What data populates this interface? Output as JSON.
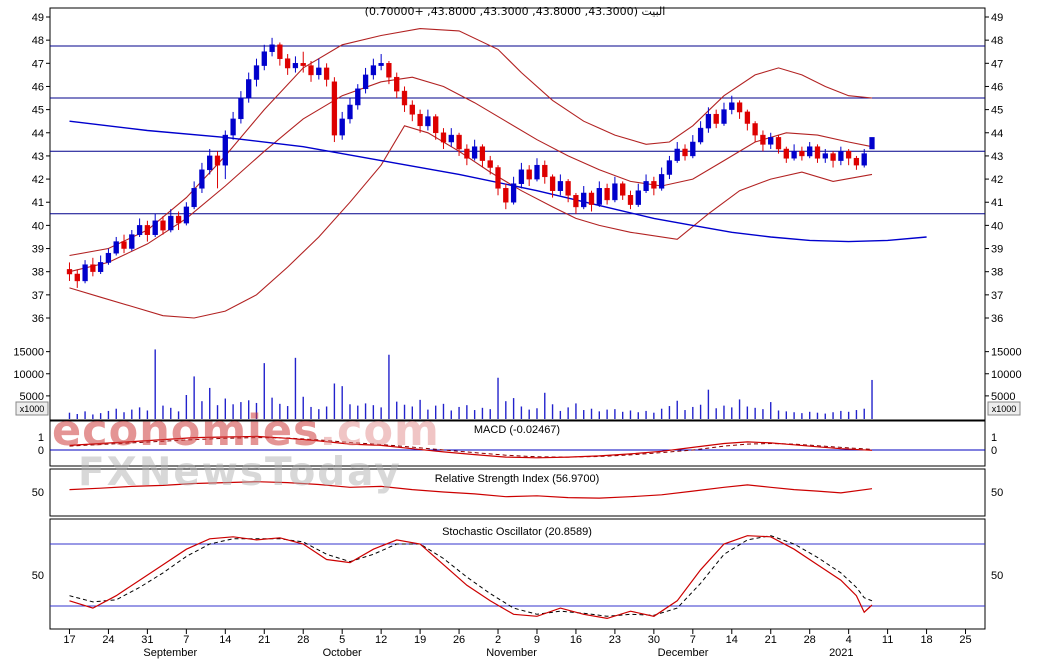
{
  "header": {
    "title": "البيت (43.3000, 43.8000, 43.3000, 43.8000, +0.70000)"
  },
  "watermarks": {
    "primary": "economies",
    "primary_suffix": ".com",
    "secondary": "FXNewsToday"
  },
  "colors": {
    "up_candle": "#0000cc",
    "down_candle": "#dd0000",
    "band_line": "#b22222",
    "ma_line": "#0000cd",
    "hline": "#00008b",
    "volume_bar": "#2222cc",
    "frame": "#000000",
    "signal_dashed": "#880000",
    "stoch_d_dashed": "#000000"
  },
  "chart_data": {
    "type": "candlestick",
    "title": "البيت (43.3000, 43.8000, 43.3000, 43.8000, +0.70000)",
    "quote": {
      "open": 43.3,
      "high": 43.8,
      "low": 43.3,
      "close": 43.8,
      "change": 0.7
    },
    "price_axis": {
      "ticks": [
        49,
        48,
        47,
        46,
        45,
        44,
        43,
        42,
        41,
        40,
        39,
        38,
        37,
        36
      ]
    },
    "price_hlines": [
      47.75,
      45.5,
      43.2,
      40.5
    ],
    "candles": [
      [
        38.1,
        38.4,
        37.6,
        37.9,
        1200
      ],
      [
        37.9,
        38.1,
        37.3,
        37.6,
        900
      ],
      [
        37.6,
        38.5,
        37.5,
        38.3,
        1500
      ],
      [
        38.3,
        38.6,
        37.8,
        38.0,
        800
      ],
      [
        38.0,
        38.7,
        37.9,
        38.4,
        1100
      ],
      [
        38.4,
        39.0,
        38.3,
        38.8,
        1600
      ],
      [
        38.8,
        39.5,
        38.7,
        39.3,
        2100
      ],
      [
        39.3,
        39.6,
        38.8,
        39.0,
        1300
      ],
      [
        39.0,
        39.8,
        38.9,
        39.6,
        1900
      ],
      [
        39.6,
        40.3,
        39.5,
        40.0,
        2400
      ],
      [
        40.0,
        40.2,
        39.3,
        39.6,
        1700
      ],
      [
        39.6,
        40.5,
        39.5,
        40.2,
        15500
      ],
      [
        40.2,
        40.4,
        39.6,
        39.8,
        2800
      ],
      [
        39.8,
        40.7,
        39.7,
        40.4,
        2300
      ],
      [
        40.4,
        40.6,
        39.8,
        40.1,
        1500
      ],
      [
        40.1,
        41.0,
        40.0,
        40.8,
        5200
      ],
      [
        40.8,
        41.9,
        40.7,
        41.6,
        9400
      ],
      [
        41.6,
        42.7,
        41.4,
        42.4,
        3800
      ],
      [
        42.4,
        43.3,
        42.2,
        43.0,
        6800
      ],
      [
        43.0,
        43.2,
        41.6,
        42.6,
        2900
      ],
      [
        42.6,
        44.1,
        42.0,
        43.9,
        4400
      ],
      [
        43.9,
        44.9,
        43.7,
        44.6,
        3100
      ],
      [
        44.6,
        45.8,
        44.4,
        45.5,
        3600
      ],
      [
        45.5,
        46.6,
        45.3,
        46.3,
        4000
      ],
      [
        46.3,
        47.2,
        46.0,
        46.9,
        3400
      ],
      [
        46.9,
        47.8,
        46.7,
        47.5,
        12400
      ],
      [
        47.5,
        48.1,
        47.3,
        47.8,
        4600
      ],
      [
        47.8,
        47.9,
        46.9,
        47.2,
        3200
      ],
      [
        47.2,
        47.4,
        46.5,
        46.8,
        2700
      ],
      [
        46.8,
        47.3,
        46.6,
        47.0,
        13600
      ],
      [
        47.0,
        47.5,
        46.6,
        46.9,
        4800
      ],
      [
        46.9,
        47.1,
        46.2,
        46.5,
        2500
      ],
      [
        46.5,
        47.2,
        46.3,
        46.8,
        2000
      ],
      [
        46.8,
        47.0,
        46.0,
        46.3,
        2600
      ],
      [
        46.2,
        46.4,
        43.6,
        43.9,
        7800
      ],
      [
        43.9,
        44.9,
        43.7,
        44.6,
        7200
      ],
      [
        44.6,
        45.5,
        44.4,
        45.2,
        3100
      ],
      [
        45.2,
        46.1,
        45.0,
        45.9,
        2800
      ],
      [
        45.9,
        46.8,
        45.7,
        46.5,
        3300
      ],
      [
        46.5,
        47.2,
        46.3,
        46.9,
        2900
      ],
      [
        46.9,
        47.4,
        46.7,
        47.0,
        2400
      ],
      [
        47.0,
        47.1,
        46.1,
        46.4,
        14300
      ],
      [
        46.4,
        46.6,
        45.5,
        45.8,
        3700
      ],
      [
        45.8,
        46.0,
        44.9,
        45.2,
        3000
      ],
      [
        45.2,
        45.4,
        44.5,
        44.8,
        2600
      ],
      [
        44.8,
        45.0,
        44.0,
        44.3,
        4100
      ],
      [
        44.3,
        45.0,
        44.1,
        44.7,
        1900
      ],
      [
        44.7,
        44.8,
        43.7,
        44.0,
        2800
      ],
      [
        44.0,
        44.2,
        43.3,
        43.6,
        3200
      ],
      [
        43.6,
        44.2,
        43.4,
        43.9,
        1700
      ],
      [
        43.9,
        44.0,
        43.0,
        43.3,
        2500
      ],
      [
        43.3,
        43.5,
        42.6,
        42.9,
        2900
      ],
      [
        42.9,
        43.7,
        42.8,
        43.4,
        1800
      ],
      [
        43.4,
        43.5,
        42.5,
        42.8,
        2300
      ],
      [
        42.8,
        43.0,
        42.2,
        42.5,
        2000
      ],
      [
        42.5,
        42.6,
        41.3,
        41.6,
        9100
      ],
      [
        41.6,
        41.8,
        40.7,
        41.0,
        3800
      ],
      [
        41.0,
        42.1,
        40.9,
        41.8,
        4500
      ],
      [
        41.8,
        42.7,
        41.6,
        42.4,
        2600
      ],
      [
        42.4,
        42.6,
        41.7,
        42.0,
        1900
      ],
      [
        42.0,
        42.9,
        41.9,
        42.6,
        2200
      ],
      [
        42.6,
        42.8,
        41.8,
        42.1,
        5700
      ],
      [
        42.1,
        42.2,
        41.2,
        41.5,
        3100
      ],
      [
        41.5,
        42.2,
        41.3,
        41.9,
        1600
      ],
      [
        41.9,
        42.0,
        41.0,
        41.3,
        2400
      ],
      [
        41.3,
        41.4,
        40.5,
        40.8,
        3300
      ],
      [
        40.8,
        41.7,
        40.7,
        41.4,
        1800
      ],
      [
        41.4,
        41.5,
        40.6,
        40.9,
        2100
      ],
      [
        40.9,
        41.9,
        40.8,
        41.6,
        1500
      ],
      [
        41.6,
        41.8,
        40.9,
        41.1,
        1900
      ],
      [
        41.1,
        42.1,
        41.0,
        41.8,
        2000
      ],
      [
        41.8,
        41.9,
        41.1,
        41.3,
        1400
      ],
      [
        41.3,
        41.5,
        40.7,
        40.9,
        1700
      ],
      [
        40.9,
        41.8,
        40.8,
        41.5,
        1300
      ],
      [
        41.5,
        42.2,
        41.4,
        41.9,
        1600
      ],
      [
        41.9,
        42.1,
        41.3,
        41.6,
        1200
      ],
      [
        41.6,
        42.5,
        41.5,
        42.2,
        2100
      ],
      [
        42.2,
        43.0,
        42.0,
        42.8,
        2700
      ],
      [
        42.8,
        43.6,
        42.7,
        43.3,
        3900
      ],
      [
        43.3,
        43.5,
        42.8,
        43.0,
        1800
      ],
      [
        43.0,
        43.9,
        42.9,
        43.6,
        2500
      ],
      [
        43.6,
        44.5,
        43.5,
        44.2,
        3000
      ],
      [
        44.2,
        45.1,
        44.0,
        44.8,
        6400
      ],
      [
        44.8,
        45.0,
        44.2,
        44.4,
        2200
      ],
      [
        44.4,
        45.3,
        44.3,
        45.0,
        2800
      ],
      [
        45.0,
        45.6,
        44.8,
        45.3,
        2400
      ],
      [
        45.3,
        45.4,
        44.6,
        44.9,
        4200
      ],
      [
        44.9,
        45.0,
        44.1,
        44.4,
        2600
      ],
      [
        44.4,
        44.5,
        43.6,
        43.9,
        2300
      ],
      [
        43.9,
        44.1,
        43.2,
        43.5,
        2000
      ],
      [
        43.5,
        44.0,
        43.3,
        43.8,
        3600
      ],
      [
        43.8,
        43.9,
        43.1,
        43.3,
        1700
      ],
      [
        43.3,
        43.4,
        42.7,
        42.9,
        1500
      ],
      [
        42.9,
        43.5,
        42.8,
        43.2,
        1300
      ],
      [
        43.2,
        43.4,
        42.8,
        43.0,
        1100
      ],
      [
        43.0,
        43.6,
        42.9,
        43.4,
        1400
      ],
      [
        43.4,
        43.5,
        42.7,
        42.9,
        1200
      ],
      [
        42.9,
        43.3,
        42.7,
        43.1,
        1000
      ],
      [
        43.1,
        43.2,
        42.5,
        42.8,
        1300
      ],
      [
        42.8,
        43.4,
        42.6,
        43.2,
        1600
      ],
      [
        43.2,
        43.3,
        42.6,
        42.9,
        1400
      ],
      [
        42.9,
        43.0,
        42.4,
        42.6,
        1800
      ],
      [
        42.6,
        43.3,
        42.5,
        43.1,
        2100
      ],
      [
        43.3,
        43.8,
        43.3,
        43.8,
        8600
      ]
    ],
    "overlays": {
      "ma_blue": {
        "i": [
          0,
          10,
          20,
          30,
          40,
          50,
          60,
          70,
          75,
          80,
          85,
          90,
          95,
          100,
          105,
          110
        ],
        "v": [
          44.5,
          44.1,
          43.8,
          43.4,
          42.8,
          42.2,
          41.5,
          40.7,
          40.3,
          40.0,
          39.7,
          39.5,
          39.35,
          39.3,
          39.35,
          39.5
        ]
      },
      "bb_upper": {
        "i": [
          0,
          5,
          10,
          15,
          20,
          25,
          30,
          35,
          40,
          45,
          50,
          55,
          58,
          62,
          66,
          70,
          74,
          77,
          80,
          84,
          88,
          91,
          94,
          97,
          100,
          103
        ],
        "v": [
          38.7,
          39.0,
          39.8,
          41.2,
          43.0,
          45.0,
          46.8,
          47.8,
          48.2,
          48.5,
          48.4,
          47.6,
          46.6,
          45.4,
          44.5,
          43.9,
          43.5,
          43.6,
          44.3,
          45.6,
          46.5,
          46.8,
          46.5,
          46.0,
          45.6,
          45.5
        ]
      },
      "bb_middle": {
        "i": [
          0,
          5,
          10,
          15,
          20,
          25,
          30,
          35,
          40,
          44,
          48,
          52,
          56,
          60,
          64,
          68,
          72,
          76,
          80,
          84,
          88,
          92,
          96,
          100,
          103
        ],
        "v": [
          38.0,
          38.4,
          39.2,
          40.3,
          41.7,
          43.2,
          44.6,
          45.6,
          46.2,
          46.4,
          46.0,
          45.3,
          44.5,
          43.7,
          43.0,
          42.4,
          41.9,
          41.7,
          42.0,
          42.8,
          43.6,
          44.0,
          43.9,
          43.6,
          43.4
        ]
      },
      "bb_lower": {
        "i": [
          0,
          4,
          8,
          12,
          16,
          20,
          24,
          28,
          32,
          36,
          40,
          43,
          46,
          50,
          54,
          58,
          62,
          65,
          68,
          72,
          78,
          82,
          86,
          90,
          94,
          98,
          103
        ],
        "v": [
          37.3,
          36.9,
          36.5,
          36.1,
          36.0,
          36.3,
          37.0,
          38.2,
          39.5,
          41.0,
          42.6,
          44.3,
          44.0,
          43.2,
          42.3,
          41.5,
          40.8,
          40.3,
          40.0,
          39.7,
          39.4,
          40.5,
          41.5,
          42.0,
          42.3,
          41.9,
          42.2
        ]
      }
    },
    "volume_axis": {
      "ticks": [
        15000,
        10000,
        5000
      ],
      "multiplier": "x1000"
    },
    "macd": {
      "label": "MACD (-0.02467)",
      "value": -0.02467,
      "ticks": [
        1,
        0
      ],
      "zero_line": 0,
      "i": [
        0,
        4,
        8,
        12,
        16,
        20,
        24,
        28,
        32,
        36,
        40,
        44,
        48,
        52,
        56,
        60,
        64,
        68,
        72,
        76,
        80,
        84,
        87,
        90,
        93,
        96,
        99,
        103
      ],
      "line": [
        0.35,
        0.5,
        0.65,
        0.8,
        0.95,
        1.0,
        1.05,
        0.9,
        0.7,
        0.45,
        0.35,
        0.1,
        -0.15,
        -0.35,
        -0.55,
        -0.6,
        -0.55,
        -0.45,
        -0.3,
        -0.1,
        0.2,
        0.5,
        0.62,
        0.55,
        0.4,
        0.25,
        0.1,
        -0.02
      ],
      "signal": [
        0.3,
        0.42,
        0.55,
        0.68,
        0.8,
        0.9,
        0.95,
        0.92,
        0.78,
        0.58,
        0.42,
        0.22,
        0.0,
        -0.2,
        -0.4,
        -0.52,
        -0.55,
        -0.5,
        -0.38,
        -0.2,
        0.0,
        0.3,
        0.45,
        0.5,
        0.45,
        0.33,
        0.2,
        0.05
      ]
    },
    "rsi": {
      "label": "Relative Strength Index (56.9700)",
      "value": 56.97,
      "ticks": [
        50
      ],
      "i": [
        0,
        4,
        8,
        12,
        16,
        20,
        24,
        28,
        32,
        36,
        40,
        44,
        48,
        52,
        56,
        60,
        64,
        68,
        72,
        76,
        80,
        84,
        87,
        90,
        93,
        96,
        99,
        103
      ],
      "line": [
        55,
        58,
        62,
        64,
        68,
        70,
        72,
        70,
        66,
        60,
        62,
        55,
        50,
        46,
        40,
        42,
        38,
        37,
        40,
        44,
        52,
        60,
        65,
        60,
        55,
        52,
        48,
        57
      ]
    },
    "stochastic": {
      "label": "Stochastic Oscillator (20.8589)",
      "value": 20.8589,
      "ticks": [
        50
      ],
      "hlines": [
        80,
        20
      ],
      "i": [
        0,
        3,
        6,
        9,
        12,
        15,
        18,
        21,
        24,
        27,
        30,
        33,
        36,
        39,
        42,
        45,
        48,
        51,
        54,
        57,
        60,
        63,
        66,
        69,
        72,
        75,
        78,
        81,
        84,
        87,
        90,
        93,
        96,
        99,
        101,
        102,
        103
      ],
      "k": [
        25,
        18,
        30,
        45,
        60,
        75,
        85,
        87,
        84,
        86,
        80,
        65,
        62,
        75,
        84,
        80,
        60,
        40,
        25,
        12,
        10,
        18,
        12,
        8,
        15,
        10,
        25,
        55,
        80,
        88,
        87,
        75,
        60,
        45,
        30,
        14,
        21
      ],
      "d": [
        30,
        24,
        26,
        38,
        52,
        68,
        80,
        85,
        85,
        85,
        82,
        70,
        63,
        70,
        80,
        80,
        66,
        48,
        32,
        18,
        12,
        15,
        13,
        10,
        12,
        11,
        18,
        42,
        70,
        84,
        88,
        80,
        67,
        52,
        38,
        28,
        25
      ]
    },
    "x_ticks": [
      {
        "slot": 2,
        "label": "17"
      },
      {
        "slot": 7,
        "label": "24"
      },
      {
        "slot": 12,
        "label": "31"
      },
      {
        "slot": 17,
        "label": "7"
      },
      {
        "slot": 22,
        "label": "14"
      },
      {
        "slot": 27,
        "label": "21"
      },
      {
        "slot": 32,
        "label": "28"
      },
      {
        "slot": 37,
        "label": "5"
      },
      {
        "slot": 42,
        "label": "12"
      },
      {
        "slot": 47,
        "label": "19"
      },
      {
        "slot": 52,
        "label": "26"
      },
      {
        "slot": 57,
        "label": "2"
      },
      {
        "slot": 62,
        "label": "9"
      },
      {
        "slot": 67,
        "label": "16"
      },
      {
        "slot": 72,
        "label": "23"
      },
      {
        "slot": 77,
        "label": "30"
      },
      {
        "slot": 82,
        "label": "7"
      },
      {
        "slot": 87,
        "label": "14"
      },
      {
        "slot": 92,
        "label": "21"
      },
      {
        "slot": 97,
        "label": "28"
      },
      {
        "slot": 102,
        "label": "4"
      },
      {
        "slot": 107,
        "label": "11"
      },
      {
        "slot": 112,
        "label": "18"
      },
      {
        "slot": 117,
        "label": "25"
      }
    ],
    "months": [
      {
        "slot": 12,
        "label": "September"
      },
      {
        "slot": 35,
        "label": "October"
      },
      {
        "slot": 56,
        "label": "November"
      },
      {
        "slot": 78,
        "label": "December"
      },
      {
        "slot": 100,
        "label": "2021"
      }
    ]
  }
}
